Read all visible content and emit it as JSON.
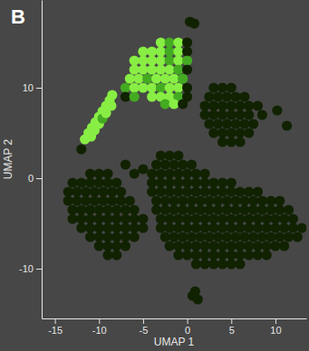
{
  "chart_data": {
    "type": "scatter",
    "title": "B",
    "x_label": "UMAP 1",
    "y_label": "UMAP 2",
    "xlim": [
      -16.5,
      13.5
    ],
    "ylim": [
      -15.5,
      19.7
    ],
    "xticks": [
      -15,
      -10,
      -5,
      0,
      5,
      10
    ],
    "yticks": [
      -10,
      0,
      10
    ],
    "grid": false,
    "x": [
      0.3,
      0.8,
      3,
      4,
      5,
      2.5,
      3.5,
      4.5,
      5.5,
      6.5,
      2,
      3,
      4,
      5,
      6,
      7,
      8,
      2,
      3,
      4,
      5,
      6,
      7,
      8.5,
      2.5,
      3.5,
      4.5,
      5.5,
      6.5,
      7.5,
      3,
      4,
      5,
      6,
      7,
      4,
      5,
      6,
      10.2,
      11.3,
      -11,
      -10,
      -9,
      -13,
      -12,
      -11,
      -10,
      -9,
      -8,
      -13.5,
      -12.5,
      -11.5,
      -10.5,
      -9.5,
      -8.5,
      -7.5,
      -13.5,
      -12.5,
      -11.5,
      -10.5,
      -9.5,
      -8.5,
      -7.5,
      -6.5,
      -13,
      -12,
      -11,
      -10,
      -9,
      -8,
      -7,
      -6,
      -13,
      -12,
      -11,
      -10,
      -9,
      -8,
      -7,
      -6,
      -5,
      -12,
      -11,
      -10,
      -9,
      -8,
      -7,
      -6,
      -5,
      -11,
      -10,
      -9,
      -8,
      -7,
      -6,
      -10,
      -9,
      -8,
      -7,
      -9,
      -8,
      -6,
      -5,
      -7,
      -12,
      -3,
      -2,
      -1,
      -3.5,
      -2.5,
      -1.5,
      -0.5,
      0.5,
      -4,
      -3,
      -2,
      -1,
      0,
      1,
      2,
      -4,
      -3,
      -2,
      -1,
      0,
      1,
      2,
      3,
      4,
      5,
      -4,
      -3,
      -2,
      -1,
      0,
      1,
      2,
      3,
      4,
      5,
      6,
      7,
      8,
      -3.5,
      -2.5,
      -1.5,
      -0.5,
      0.5,
      1.5,
      2.5,
      3.5,
      4.5,
      5.5,
      6.5,
      7.5,
      8.5,
      9.5,
      10.5,
      -3.5,
      -2.5,
      -1.5,
      -0.5,
      0.5,
      1.5,
      2.5,
      3.5,
      4.5,
      5.5,
      6.5,
      7.5,
      8.5,
      9.5,
      10.5,
      11.5,
      -3,
      -2,
      -1,
      0,
      1,
      2,
      3,
      4,
      5,
      6,
      7,
      8,
      9,
      10,
      11,
      12,
      -3,
      -2,
      -1,
      0,
      1,
      2,
      3,
      4,
      5,
      6,
      7,
      8,
      9,
      10,
      11,
      12,
      13,
      -2.5,
      -1.5,
      -0.5,
      0.5,
      1.5,
      2.5,
      3.5,
      4.5,
      5.5,
      6.5,
      7.5,
      8.5,
      9.5,
      10.5,
      11.5,
      12.5,
      -2,
      -1,
      0,
      1,
      2,
      3,
      4,
      5,
      6,
      7,
      8,
      9,
      10,
      11,
      -1,
      0,
      1,
      2,
      3,
      4,
      5,
      6,
      7,
      8,
      9,
      1,
      2,
      3,
      4,
      5,
      6,
      0.6,
      1.2,
      0.9,
      -3,
      -2,
      -1,
      0,
      -5,
      -4,
      -3,
      -2,
      -1,
      0,
      -6,
      -5,
      -4,
      -3,
      -2,
      -1,
      0,
      -6,
      -5,
      -4,
      -3,
      -2,
      -1,
      0,
      -6.5,
      -5.5,
      -4.5,
      -3.5,
      -2.5,
      -1.5,
      -0.5,
      -7,
      -6,
      -5,
      -4,
      -3,
      -2,
      -1,
      0,
      -7,
      -6,
      -4,
      -3,
      -2,
      -1,
      0,
      -2.5,
      -1.5,
      -0.5,
      -11.6,
      -11.2,
      -10.8,
      -10.4,
      -10,
      -9.6,
      -9.2,
      -8.8,
      -8.5,
      -10.9,
      -10.5,
      -10,
      -9.6,
      -9.2,
      -8.6
    ],
    "values": [
      17.3,
      17.1,
      10,
      10,
      10,
      9,
      9,
      9,
      9,
      9,
      8,
      8,
      8,
      8,
      8,
      8,
      8,
      7,
      7,
      7,
      7,
      7,
      7,
      7,
      6,
      6,
      6,
      6,
      6,
      6,
      5,
      5,
      5,
      5,
      5,
      4,
      4,
      4,
      7.5,
      5.8,
      0.5,
      0.5,
      0.5,
      -0.5,
      -0.5,
      -0.5,
      -0.5,
      -0.5,
      -0.5,
      -1.5,
      -1.5,
      -1.5,
      -1.5,
      -1.5,
      -1.5,
      -1.5,
      -2.5,
      -2.5,
      -2.5,
      -2.5,
      -2.5,
      -2.5,
      -2.5,
      -2.5,
      -3.5,
      -3.5,
      -3.5,
      -3.5,
      -3.5,
      -3.5,
      -3.5,
      -3.5,
      -4.5,
      -4.5,
      -4.5,
      -4.5,
      -4.5,
      -4.5,
      -4.5,
      -4.5,
      -4.5,
      -5.5,
      -5.5,
      -5.5,
      -5.5,
      -5.5,
      -5.5,
      -5.5,
      -5.5,
      -6.5,
      -6.5,
      -6.5,
      -6.5,
      -6.5,
      -6.5,
      -7.5,
      -7.5,
      -7.5,
      -7.5,
      -8.5,
      -8.5,
      0.5,
      1,
      1.5,
      3.2,
      2.5,
      2.5,
      2.5,
      1.5,
      1.5,
      1.5,
      1.5,
      1.5,
      0.5,
      0.5,
      0.5,
      0.5,
      0.5,
      0.5,
      0.5,
      -0.5,
      -0.5,
      -0.5,
      -0.5,
      -0.5,
      -0.5,
      -0.5,
      -0.5,
      -0.5,
      -0.5,
      -1.5,
      -1.5,
      -1.5,
      -1.5,
      -1.5,
      -1.5,
      -1.5,
      -1.5,
      -1.5,
      -1.5,
      -1.5,
      -1.5,
      -1.5,
      -2.5,
      -2.5,
      -2.5,
      -2.5,
      -2.5,
      -2.5,
      -2.5,
      -2.5,
      -2.5,
      -2.5,
      -2.5,
      -2.5,
      -2.5,
      -2.5,
      -2.5,
      -3.5,
      -3.5,
      -3.5,
      -3.5,
      -3.5,
      -3.5,
      -3.5,
      -3.5,
      -3.5,
      -3.5,
      -3.5,
      -3.5,
      -3.5,
      -3.5,
      -3.5,
      -3.5,
      -4.5,
      -4.5,
      -4.5,
      -4.5,
      -4.5,
      -4.5,
      -4.5,
      -4.5,
      -4.5,
      -4.5,
      -4.5,
      -4.5,
      -4.5,
      -4.5,
      -4.5,
      -4.5,
      -5.5,
      -5.5,
      -5.5,
      -5.5,
      -5.5,
      -5.5,
      -5.5,
      -5.5,
      -5.5,
      -5.5,
      -5.5,
      -5.5,
      -5.5,
      -5.5,
      -5.5,
      -5.5,
      -5.5,
      -6.5,
      -6.5,
      -6.5,
      -6.5,
      -6.5,
      -6.5,
      -6.5,
      -6.5,
      -6.5,
      -6.5,
      -6.5,
      -6.5,
      -6.5,
      -6.5,
      -6.5,
      -6.5,
      -7.5,
      -7.5,
      -7.5,
      -7.5,
      -7.5,
      -7.5,
      -7.5,
      -7.5,
      -7.5,
      -7.5,
      -7.5,
      -7.5,
      -7.5,
      -7.5,
      -8.5,
      -8.5,
      -8.5,
      -8.5,
      -8.5,
      -8.5,
      -8.5,
      -8.5,
      -8.5,
      -8.5,
      -8.5,
      -9.5,
      -9.5,
      -9.5,
      -9.5,
      -9.5,
      -9.5,
      -13,
      -13.4,
      -12.5,
      15,
      15,
      15,
      15,
      14,
      14,
      14,
      14,
      14,
      14,
      13,
      13,
      13,
      13,
      13,
      13,
      13,
      12,
      12,
      12,
      12,
      12,
      12,
      12,
      11,
      11,
      11,
      11,
      11,
      11,
      11,
      10,
      10,
      10,
      10,
      10,
      10,
      10,
      10,
      9,
      9,
      9,
      9,
      9,
      9,
      9,
      8.2,
      8.2,
      8.2,
      4.3,
      5,
      5.6,
      6.2,
      6.8,
      7.4,
      8,
      8.6,
      9.2,
      4.6,
      5.3,
      6,
      6.6,
      7.2,
      8
    ],
    "colors": [
      "#120",
      "#120",
      "#120",
      "#120",
      "#120",
      "#120",
      "#120",
      "#120",
      "#120",
      "#120",
      "#120",
      "#120",
      "#120",
      "#120",
      "#120",
      "#120",
      "#120",
      "#120",
      "#120",
      "#120",
      "#120",
      "#120",
      "#120",
      "#120",
      "#120",
      "#120",
      "#120",
      "#120",
      "#120",
      "#120",
      "#120",
      "#120",
      "#120",
      "#120",
      "#120",
      "#120",
      "#120",
      "#120",
      "#120",
      "#120",
      "#120",
      "#120",
      "#120",
      "#120",
      "#120",
      "#120",
      "#120",
      "#120",
      "#120",
      "#120",
      "#120",
      "#120",
      "#120",
      "#120",
      "#120",
      "#120",
      "#120",
      "#120",
      "#120",
      "#120",
      "#120",
      "#120",
      "#120",
      "#120",
      "#120",
      "#120",
      "#120",
      "#120",
      "#120",
      "#120",
      "#120",
      "#120",
      "#120",
      "#120",
      "#120",
      "#120",
      "#120",
      "#120",
      "#120",
      "#120",
      "#120",
      "#120",
      "#120",
      "#120",
      "#120",
      "#120",
      "#120",
      "#120",
      "#120",
      "#120",
      "#120",
      "#120",
      "#120",
      "#120",
      "#120",
      "#120",
      "#120",
      "#120",
      "#120",
      "#120",
      "#120",
      "#120",
      "#120",
      "#120",
      "#120",
      "#120",
      "#120",
      "#120",
      "#120",
      "#120",
      "#120",
      "#120",
      "#120",
      "#120",
      "#120",
      "#120",
      "#120",
      "#120",
      "#120",
      "#120",
      "#120",
      "#120",
      "#120",
      "#120",
      "#120",
      "#120",
      "#120",
      "#120",
      "#120",
      "#120",
      "#120",
      "#120",
      "#120",
      "#120",
      "#120",
      "#120",
      "#120",
      "#120",
      "#120",
      "#120",
      "#120",
      "#120",
      "#120",
      "#120",
      "#120",
      "#120",
      "#120",
      "#120",
      "#120",
      "#120",
      "#120",
      "#120",
      "#120",
      "#120",
      "#120",
      "#120",
      "#120",
      "#120",
      "#120",
      "#120",
      "#120",
      "#120",
      "#120",
      "#120",
      "#120",
      "#120",
      "#120",
      "#120",
      "#120",
      "#120",
      "#120",
      "#120",
      "#120",
      "#120",
      "#120",
      "#120",
      "#120",
      "#120",
      "#120",
      "#120",
      "#120",
      "#120",
      "#120",
      "#120",
      "#120",
      "#120",
      "#120",
      "#120",
      "#120",
      "#120",
      "#120",
      "#120",
      "#120",
      "#120",
      "#120",
      "#120",
      "#120",
      "#120",
      "#120",
      "#120",
      "#120",
      "#120",
      "#120",
      "#120",
      "#120",
      "#120",
      "#120",
      "#120",
      "#120",
      "#120",
      "#120",
      "#120",
      "#120",
      "#120",
      "#120",
      "#120",
      "#120",
      "#120",
      "#120",
      "#120",
      "#120",
      "#120",
      "#120",
      "#120",
      "#120",
      "#120",
      "#120",
      "#120",
      "#120",
      "#120",
      "#120",
      "#120",
      "#120",
      "#120",
      "#120",
      "#120",
      "#120",
      "#120",
      "#120",
      "#120",
      "#120",
      "#120",
      "#120",
      "#120",
      "#120",
      "#120",
      "#120",
      "#120",
      "#120",
      "#120",
      "#120",
      "#120",
      "#120",
      "#120",
      "#120",
      "#120",
      "#120",
      "#8e4",
      "#4a2",
      "#8e4",
      "#120",
      "#8e4",
      "#8e4",
      "#8e4",
      "#4a2",
      "#8e4",
      "#120",
      "#8e4",
      "#8e4",
      "#8e4",
      "#8e4",
      "#4a2",
      "#8e4",
      "#4a2",
      "#8e4",
      "#8e4",
      "#8e4",
      "#8e4",
      "#8e4",
      "#4a2",
      "#120",
      "#8e4",
      "#8e4",
      "#4a2",
      "#8e4",
      "#8e4",
      "#8e4",
      "#4a2",
      "#4a2",
      "#8e4",
      "#8e4",
      "#8e4",
      "#4a2",
      "#8e4",
      "#8e4",
      "#120",
      "#120",
      "#4a2",
      "#8e4",
      "#8e4",
      "#8e4",
      "#4a2",
      "#120",
      "#4a2",
      "#8e4",
      "#120",
      "#8e4",
      "#8e4",
      "#8e4",
      "#8e4",
      "#8e4",
      "#8e4",
      "#8e4",
      "#8e4",
      "#8e4",
      "#8e4",
      "#8e4",
      "#8e4",
      "#4a2",
      "#8e4",
      "#8e4"
    ]
  }
}
